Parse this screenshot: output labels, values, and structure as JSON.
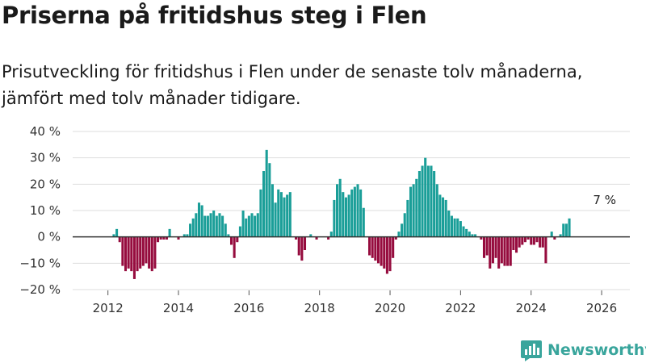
{
  "header": {
    "title": "Priserna på fritidshus steg i Flen",
    "subtitle": "Prisutveckling för fritidshus i Flen under de senaste tolv månaderna, jämfört med tolv månader tidigare."
  },
  "brand": {
    "name": "Newsworthy"
  },
  "colors": {
    "positive": "#1a9e98",
    "negative": "#960c3e",
    "zero_line": "#333333",
    "grid": "#dddddd",
    "brand": "#39a59c"
  },
  "chart_data": {
    "type": "bar",
    "title": "Priserna på fritidshus steg i Flen",
    "xlabel": "",
    "ylabel": "",
    "ylim": [
      -20,
      40
    ],
    "xlim": [
      2011.0,
      2026.8
    ],
    "y_ticks": [
      {
        "value": 40,
        "label": "40 %"
      },
      {
        "value": 30,
        "label": "30 %"
      },
      {
        "value": 20,
        "label": "20 %"
      },
      {
        "value": 10,
        "label": "10 %"
      },
      {
        "value": 0,
        "label": "0 %"
      },
      {
        "value": -10,
        "label": "−10 %"
      },
      {
        "value": -20,
        "label": "−20 %"
      }
    ],
    "x_ticks": [
      {
        "value": 2012,
        "label": "2012"
      },
      {
        "value": 2014,
        "label": "2014"
      },
      {
        "value": 2016,
        "label": "2016"
      },
      {
        "value": 2018,
        "label": "2018"
      },
      {
        "value": 2020,
        "label": "2020"
      },
      {
        "value": 2022,
        "label": "2022"
      },
      {
        "value": 2024,
        "label": "2024"
      },
      {
        "value": 2026,
        "label": "2026"
      }
    ],
    "start": "2012-01",
    "frequency": "monthly",
    "values": [
      0,
      0,
      1,
      3,
      -2,
      -11,
      -13,
      -12,
      -13,
      -16,
      -13,
      -12,
      -11,
      -10,
      -12,
      -13,
      -12,
      -2,
      -1,
      -1,
      -1,
      3,
      0,
      0,
      -1,
      0,
      1,
      1,
      5,
      7,
      9,
      13,
      12,
      8,
      8,
      9,
      10,
      8,
      9,
      8,
      5,
      1,
      -3,
      -8,
      -2,
      4,
      10,
      7,
      8,
      9,
      8,
      9,
      18,
      25,
      33,
      28,
      20,
      13,
      18,
      17,
      15,
      16,
      17,
      0,
      -1,
      -7,
      -9,
      -5,
      0,
      1,
      0,
      -1,
      0,
      0,
      0,
      -1,
      2,
      14,
      20,
      22,
      17,
      15,
      16,
      18,
      19,
      20,
      18,
      11,
      0,
      -7,
      -8,
      -9,
      -10,
      -11,
      -12,
      -14,
      -13,
      -8,
      -1,
      2,
      5,
      9,
      14,
      19,
      20,
      22,
      25,
      27,
      30,
      27,
      27,
      25,
      20,
      16,
      15,
      14,
      10,
      8,
      7,
      7,
      6,
      4,
      3,
      2,
      1,
      1,
      0,
      -1,
      -8,
      -7,
      -12,
      -10,
      -8,
      -12,
      -10,
      -11,
      -11,
      -11,
      -5,
      -6,
      -4,
      -3,
      -2,
      -1,
      -3,
      -3,
      -2,
      -4,
      -4,
      -10,
      0,
      2,
      -1,
      0,
      1,
      5,
      5,
      7
    ],
    "annotations": [
      {
        "label": "7 %",
        "date": "2026-02",
        "value": 7
      }
    ]
  }
}
